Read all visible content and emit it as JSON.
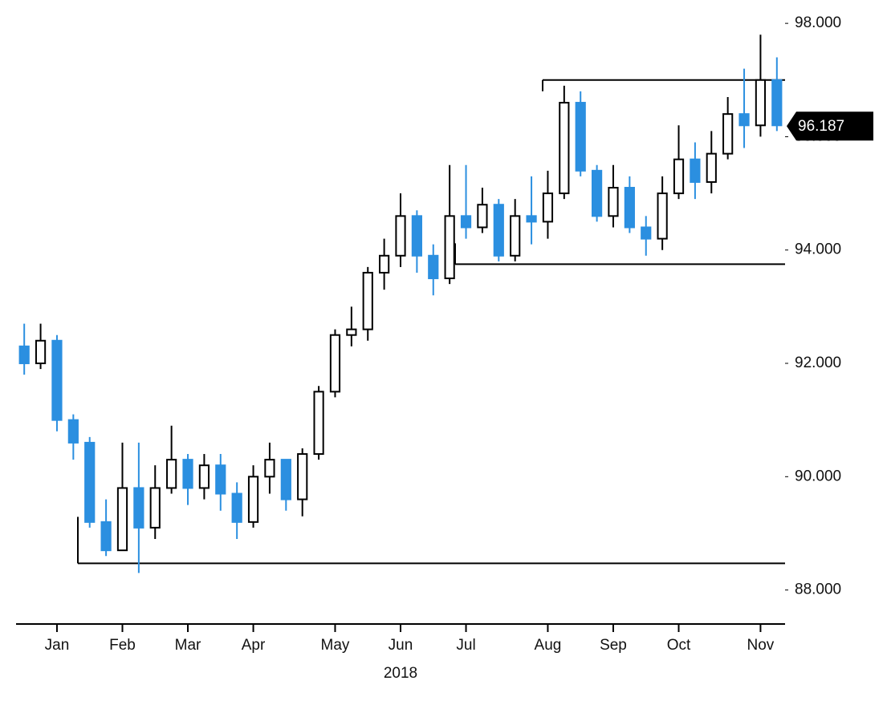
{
  "chart_data": {
    "type": "candlestick",
    "categories": [
      null,
      null,
      "Jan",
      null,
      null,
      null,
      "Feb",
      null,
      null,
      null,
      "Mar",
      null,
      null,
      null,
      "Apr",
      null,
      null,
      null,
      null,
      "May",
      null,
      null,
      null,
      "Jun",
      null,
      null,
      null,
      "Jul",
      null,
      null,
      null,
      null,
      "Aug",
      null,
      null,
      null,
      "Sep",
      null,
      null,
      null,
      "Oct",
      null,
      null,
      null,
      null,
      "Nov",
      null
    ],
    "year_label": "2018",
    "open": [
      92.3,
      92.0,
      92.4,
      91.0,
      90.6,
      89.2,
      88.7,
      89.8,
      89.1,
      89.8,
      90.3,
      89.8,
      90.2,
      89.7,
      89.2,
      90.0,
      90.3,
      89.6,
      90.4,
      91.5,
      92.5,
      92.6,
      93.6,
      93.9,
      94.6,
      93.9,
      93.5,
      94.6,
      94.4,
      94.8,
      93.9,
      94.6,
      94.5,
      95.0,
      96.6,
      95.4,
      94.6,
      95.1,
      94.4,
      94.2,
      95.0,
      95.6,
      95.2,
      95.7,
      96.4,
      96.2,
      97.0
    ],
    "high": [
      92.7,
      92.7,
      92.5,
      91.1,
      90.7,
      89.6,
      90.6,
      90.6,
      90.2,
      90.9,
      90.4,
      90.4,
      90.4,
      89.9,
      90.2,
      90.6,
      90.3,
      90.5,
      91.6,
      92.6,
      93.0,
      93.7,
      94.2,
      95.0,
      94.7,
      94.1,
      95.5,
      95.5,
      95.1,
      94.9,
      94.9,
      95.3,
      95.4,
      96.9,
      96.8,
      95.5,
      95.5,
      95.3,
      94.6,
      95.3,
      96.2,
      95.9,
      96.1,
      96.7,
      97.2,
      97.8,
      97.4
    ],
    "low": [
      91.8,
      91.9,
      90.8,
      90.3,
      89.1,
      88.6,
      88.7,
      88.3,
      88.9,
      89.7,
      89.5,
      89.6,
      89.4,
      88.9,
      89.1,
      89.7,
      89.4,
      89.3,
      90.3,
      91.4,
      92.3,
      92.4,
      93.3,
      93.7,
      93.6,
      93.2,
      93.4,
      94.2,
      94.3,
      93.8,
      93.8,
      94.1,
      94.2,
      94.9,
      95.3,
      94.5,
      94.4,
      94.3,
      93.9,
      94.0,
      94.9,
      94.9,
      95.0,
      95.6,
      95.8,
      96.0,
      96.1
    ],
    "close": [
      92.0,
      92.4,
      91.0,
      90.6,
      89.2,
      88.7,
      89.8,
      89.1,
      89.8,
      90.3,
      89.8,
      90.2,
      89.7,
      89.2,
      90.0,
      90.3,
      89.6,
      90.4,
      91.5,
      92.5,
      92.6,
      93.6,
      93.9,
      94.6,
      93.9,
      93.5,
      94.6,
      94.4,
      94.8,
      93.9,
      94.6,
      94.5,
      95.0,
      96.6,
      95.4,
      94.6,
      95.1,
      94.4,
      94.2,
      95.0,
      95.6,
      95.2,
      95.7,
      96.4,
      96.2,
      97.0,
      96.2
    ],
    "up_color": "#000000",
    "down_color": "#2b8fe0",
    "levels": [
      97.0,
      93.75,
      88.47
    ],
    "last_price": 96.187,
    "ylim": [
      87.4,
      98.2
    ],
    "yticks": [
      {
        "value": 88,
        "label": "88.000"
      },
      {
        "value": 90,
        "label": "90.000"
      },
      {
        "value": 92,
        "label": "92.000"
      },
      {
        "value": 94,
        "label": "94.000"
      },
      {
        "value": 96,
        "label": "96.000"
      },
      {
        "value": 98,
        "label": "98.000"
      }
    ],
    "grid": false
  }
}
